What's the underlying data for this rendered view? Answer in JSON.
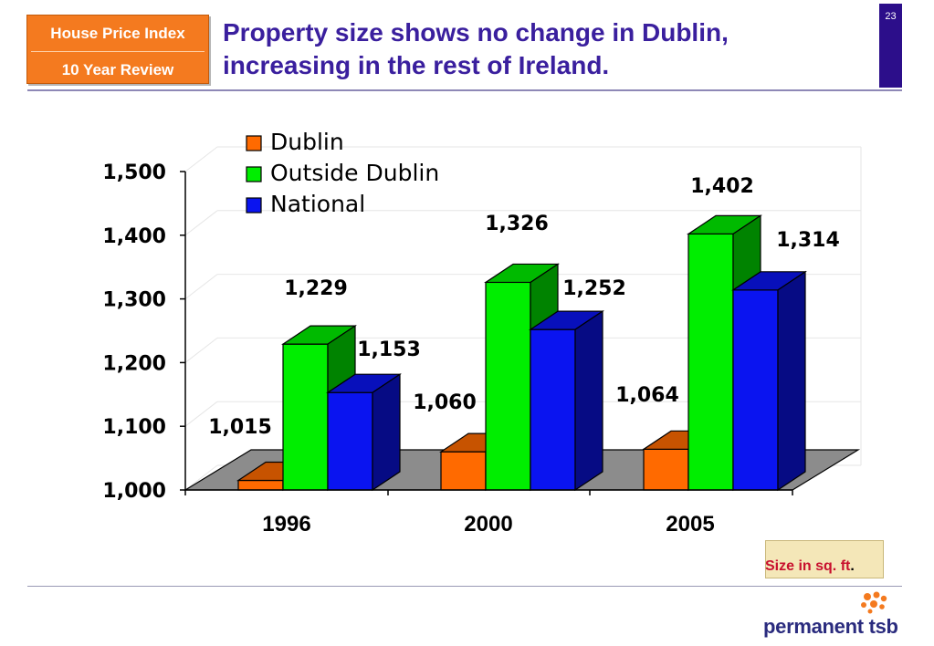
{
  "header": {
    "badge_line1": "House Price Index",
    "badge_line2": "10 Year Review",
    "title_line1": "Property size shows no change in Dublin,",
    "title_line2": "increasing in the rest of Ireland.",
    "page_number": "23"
  },
  "colors": {
    "dublin": "#ff6a00",
    "outside_dublin": "#00ee00",
    "national": "#0a14f0",
    "title": "#3a1f9e",
    "badge": "#f47a1f"
  },
  "chart_data": {
    "type": "bar",
    "style": "3d-clustered",
    "categories": [
      "1996",
      "2000",
      "2005"
    ],
    "series": [
      {
        "name": "Dublin",
        "values": [
          1015,
          1060,
          1064
        ],
        "color": "#ff6a00"
      },
      {
        "name": "Outside Dublin",
        "values": [
          1229,
          1326,
          1402
        ],
        "color": "#00ee00"
      },
      {
        "name": "National",
        "values": [
          1153,
          1252,
          1314
        ],
        "color": "#0a14f0"
      }
    ],
    "data_labels": [
      "1,015",
      "1,229",
      "1,153",
      "1,060",
      "1,326",
      "1,252",
      "1,064",
      "1,402",
      "1,314"
    ],
    "y_ticks": [
      "1,000",
      "1,100",
      "1,200",
      "1,300",
      "1,400",
      "1,500"
    ],
    "ylim": [
      1000,
      1500
    ],
    "grid": true,
    "legend": "top-left"
  },
  "footer": {
    "unit_label": "Size in sq. ft",
    "unit_suffix": ".",
    "brand": "permanent tsb"
  }
}
